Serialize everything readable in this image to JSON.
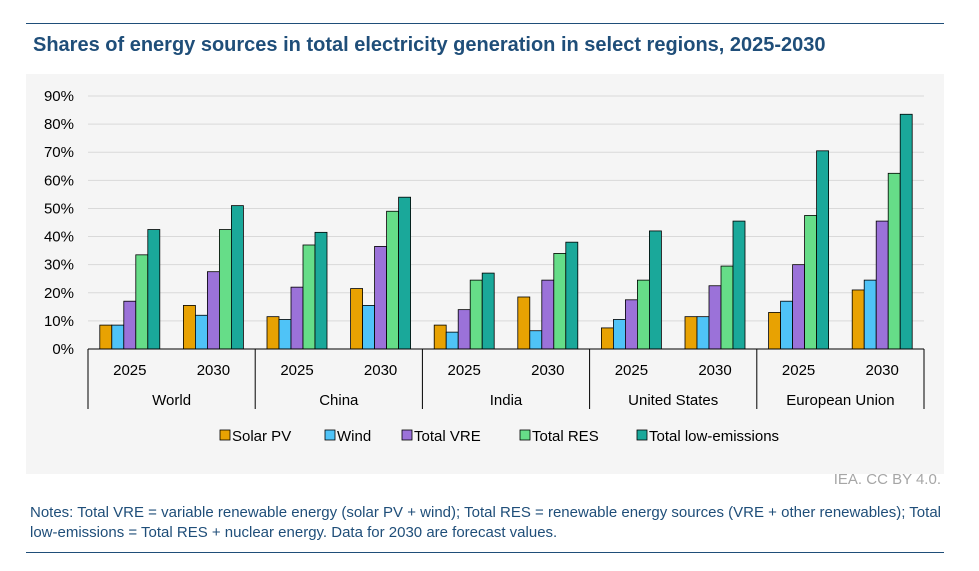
{
  "page": {
    "title": "Shares of energy sources in total electricity generation in select regions, 2025-2030",
    "credit": "IEA. CC BY 4.0.",
    "notes": "Notes: Total VRE = variable renewable energy (solar PV + wind); Total RES = renewable energy sources (VRE + other renewables); Total low-emissions = Total RES + nuclear energy. Data for 2030 are forecast values."
  },
  "chart_data": {
    "type": "bar",
    "groups": [
      "World",
      "China",
      "India",
      "United States",
      "European Union"
    ],
    "years": [
      "2025",
      "2030"
    ],
    "ylim": [
      0,
      90
    ],
    "yticks": [
      "0%",
      "10%",
      "20%",
      "30%",
      "40%",
      "50%",
      "60%",
      "70%",
      "80%",
      "90%"
    ],
    "legend_position": "bottom",
    "grid": true,
    "series": [
      {
        "name": "Solar PV",
        "color": "#e8a202",
        "values": [
          8.5,
          15.5,
          11.5,
          21.5,
          8.5,
          18.5,
          7.5,
          11.5,
          13,
          21
        ]
      },
      {
        "name": "Wind",
        "color": "#4fc3f7",
        "values": [
          8.5,
          12,
          10.5,
          15.5,
          6,
          6.5,
          10.5,
          11.5,
          17,
          24.5
        ]
      },
      {
        "name": "Total VRE",
        "color": "#9b72d9",
        "values": [
          17,
          27.5,
          22,
          36.5,
          14,
          24.5,
          17.5,
          22.5,
          30,
          45.5
        ]
      },
      {
        "name": "Total RES",
        "color": "#66dd88",
        "values": [
          33.5,
          42.5,
          37,
          49,
          24.5,
          34,
          24.5,
          29.5,
          47.5,
          62.5
        ]
      },
      {
        "name": "Total low-emissions",
        "color": "#1aa89a",
        "values": [
          42.5,
          51,
          41.5,
          54,
          27,
          38,
          42,
          45.5,
          70.5,
          83.5
        ]
      }
    ]
  }
}
